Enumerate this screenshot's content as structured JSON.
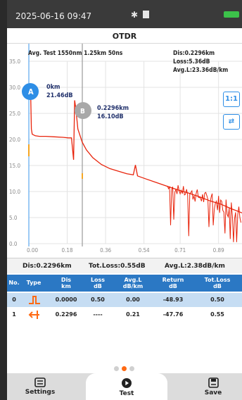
{
  "status": {
    "time": "2025-06-16 09:47",
    "bluetooth_glyph": "✱",
    "accent": "#3cc24a"
  },
  "title": "OTDR",
  "test_info": "Avg. Test  1550nm 1.25km 50ns",
  "trace_info": {
    "dis": "Dis:0.2296km",
    "loss": "Loss:5.36dB",
    "avg": "Avg.L:23.36dB/km"
  },
  "marker_a": {
    "letter": "A",
    "line1": "0km",
    "line2": "21.46dB"
  },
  "marker_b": {
    "letter": "B",
    "line1": "0.2296km",
    "line2": "16.10dB"
  },
  "side_buttons": {
    "ratio": "1:1",
    "swap": "⇄"
  },
  "summary": {
    "dis": "Dis:0.2296km",
    "tot_loss": "Tot.Loss:0.55dB",
    "avg_l": "Avg.L:2.38dB/km"
  },
  "table": {
    "headers": {
      "no": "No.",
      "type": "Type",
      "dis": "Dis",
      "dis_u": "km",
      "loss": "Loss",
      "loss_u": "dB",
      "avgl": "Avg.L",
      "avgl_u": "dB/km",
      "ret": "Return",
      "ret_u": "dB",
      "tot": "Tot.Loss",
      "tot_u": "dB"
    },
    "rows": [
      {
        "no": "0",
        "dis": "0.0000",
        "loss": "0.50",
        "avgl": "0.00",
        "ret": "-48.93",
        "tot": "0.50"
      },
      {
        "no": "1",
        "dis": "0.2296",
        "loss": "----",
        "avgl": "0.21",
        "ret": "-47.76",
        "tot": "0.55"
      }
    ]
  },
  "pager": {
    "count": 3,
    "active": 1
  },
  "nav": {
    "settings": "Settings",
    "test": "Test",
    "save": "Save"
  },
  "colors": {
    "trace": "#e8240c",
    "table_header": "#2b78c4",
    "accent_blue": "#2e8ee6",
    "marker_a": "#2e8ee6",
    "marker_b": "#a8a8a8",
    "pager_active": "#ff6a13"
  },
  "chart_data": {
    "type": "line",
    "y_ticks": [
      "35.0",
      "30.0",
      "25.0",
      "20.0",
      "15.0",
      "10.0",
      "5.0",
      "0.0"
    ],
    "x_ticks": [
      "0.00",
      "0.18",
      "0.36",
      "0.54",
      "0.71",
      "0.89"
    ],
    "ylim": [
      0,
      35
    ],
    "xlim": [
      0,
      1.0
    ],
    "grid": true,
    "series": [
      {
        "values": [
          [
            0.0,
            30.5
          ],
          [
            0.008,
            30.0
          ],
          [
            0.012,
            22.0
          ],
          [
            0.016,
            21.0
          ],
          [
            0.03,
            20.7
          ],
          [
            0.05,
            20.6
          ],
          [
            0.08,
            20.6
          ],
          [
            0.12,
            20.5
          ],
          [
            0.16,
            20.4
          ],
          [
            0.185,
            20.3
          ],
          [
            0.2,
            20.3
          ],
          [
            0.21,
            16.1
          ],
          [
            0.215,
            27.5
          ],
          [
            0.22,
            26.0
          ],
          [
            0.23,
            22.0
          ],
          [
            0.25,
            19.5
          ],
          [
            0.27,
            18.0
          ],
          [
            0.3,
            16.5
          ],
          [
            0.34,
            15.2
          ],
          [
            0.38,
            14.4
          ],
          [
            0.42,
            13.9
          ],
          [
            0.46,
            13.4
          ],
          [
            0.49,
            13.2
          ],
          [
            0.5,
            15.1
          ],
          [
            0.51,
            13.0
          ],
          [
            0.55,
            12.4
          ],
          [
            0.6,
            11.7
          ],
          [
            0.65,
            11.0
          ],
          [
            0.7,
            10.3
          ],
          [
            0.75,
            9.7
          ],
          [
            0.8,
            9.0
          ],
          [
            0.85,
            8.2
          ],
          [
            0.9,
            7.6
          ],
          [
            0.95,
            6.7
          ],
          [
            1.0,
            5.9
          ]
        ]
      }
    ]
  }
}
